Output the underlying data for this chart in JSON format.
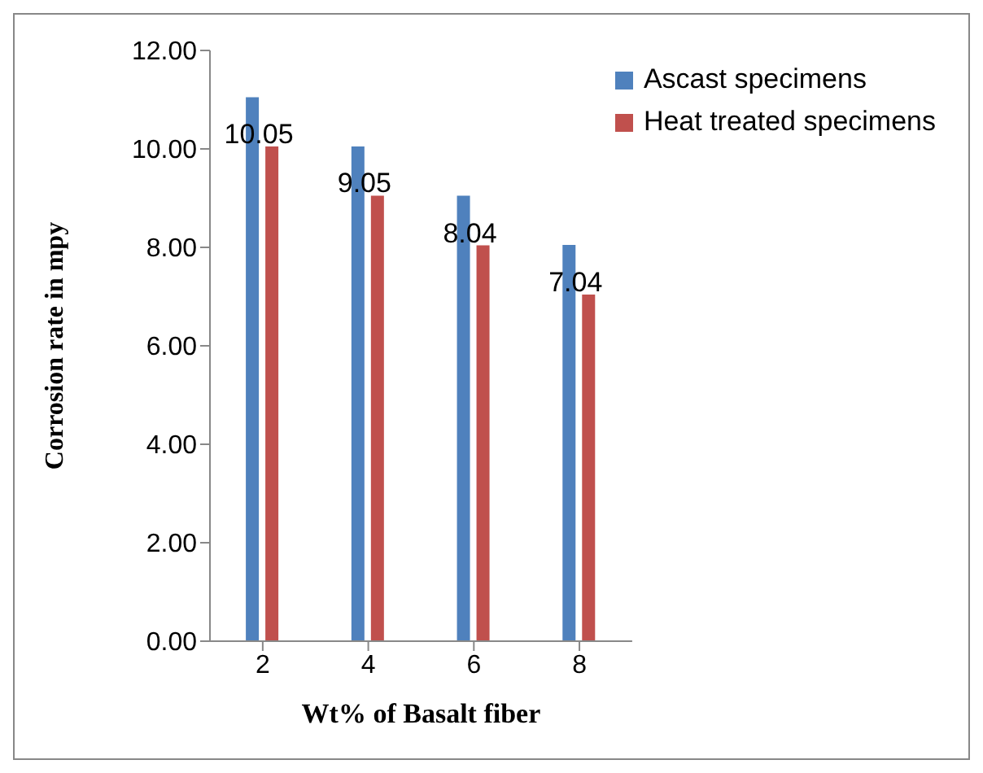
{
  "chart_data": {
    "type": "bar",
    "xlabel": "Wt% of Basalt fiber",
    "ylabel": "Corrosion rate in mpy",
    "categories": [
      "2",
      "4",
      "6",
      "8"
    ],
    "series": [
      {
        "name": "Ascast specimens",
        "color": "#4f81bd",
        "values": [
          11.05,
          10.05,
          9.05,
          8.05
        ]
      },
      {
        "name": "Heat treated specimens",
        "color": "#c0504d",
        "values": [
          10.05,
          9.05,
          8.04,
          7.04
        ],
        "value_labels": [
          "10.05",
          "9.05",
          "8.04",
          "7.04"
        ]
      }
    ],
    "ylim": [
      0,
      12
    ],
    "yticks": [
      {
        "value": 0,
        "label": "0.00"
      },
      {
        "value": 2,
        "label": "2.00"
      },
      {
        "value": 4,
        "label": "4.00"
      },
      {
        "value": 6,
        "label": "6.00"
      },
      {
        "value": 8,
        "label": "8.00"
      },
      {
        "value": 10,
        "label": "10.00"
      },
      {
        "value": 12,
        "label": "12.00"
      }
    ],
    "grid": false,
    "legend": "top right"
  }
}
